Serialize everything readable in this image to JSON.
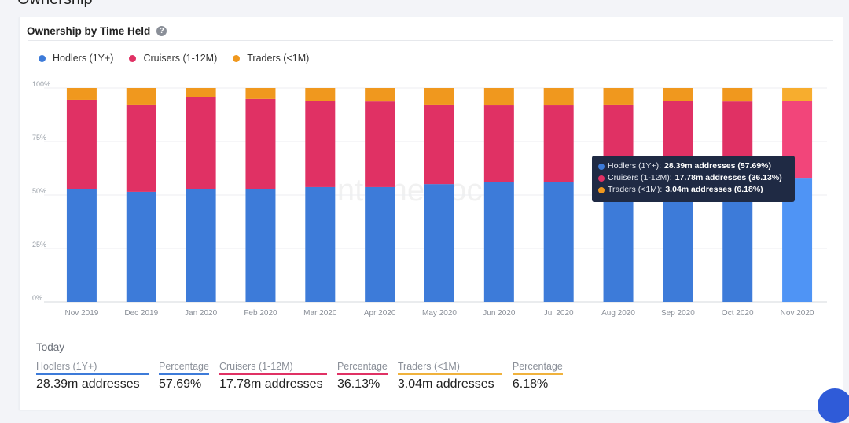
{
  "page": {
    "section_title": "Ownership"
  },
  "card": {
    "title": "Ownership by Time Held",
    "help_icon": "?"
  },
  "legend": [
    {
      "label": "Hodlers (1Y+)",
      "color": "#3d7bd9"
    },
    {
      "label": "Cruisers (1-12M)",
      "color": "#e03164"
    },
    {
      "label": "Traders (<1M)",
      "color": "#f0981e"
    }
  ],
  "watermark": "intotheblock",
  "tooltip": {
    "rows": [
      {
        "label": "Hodlers (1Y+):",
        "value": "28.39m addresses (57.69%)",
        "color": "#3d7bd9"
      },
      {
        "label": "Cruisers (1-12M):",
        "value": "17.78m addresses (36.13%)",
        "color": "#e03164"
      },
      {
        "label": "Traders (<1M):",
        "value": "3.04m addresses (6.18%)",
        "color": "#f0981e"
      }
    ]
  },
  "today": {
    "title": "Today",
    "stats": [
      {
        "label": "Hodlers (1Y+)",
        "value": "28.39m addresses",
        "color": "#3d7bd9"
      },
      {
        "label": "Percentage",
        "value": "57.69%",
        "color": "#3d7bd9"
      },
      {
        "label": "Cruisers (1-12M)",
        "value": "17.78m addresses",
        "color": "#e03164"
      },
      {
        "label": "Percentage",
        "value": "36.13%",
        "color": "#e03164"
      },
      {
        "label": "Traders (<1M)",
        "value": "3.04m addresses",
        "color": "#f0981e"
      },
      {
        "label": "Percentage",
        "value": "6.18%",
        "color": "#f0981e"
      }
    ]
  },
  "chart_data": {
    "type": "bar",
    "stacked": true,
    "title": "Ownership by Time Held",
    "xlabel": "",
    "ylabel": "",
    "ylim": [
      0,
      100
    ],
    "yticks": [
      "0%",
      "25%",
      "50%",
      "75%",
      "100%"
    ],
    "grid": true,
    "legend_position": "top-left",
    "highlighted_category": "Nov 2020",
    "categories": [
      "Nov 2019",
      "Dec 2019",
      "Jan 2020",
      "Feb 2020",
      "Mar 2020",
      "Apr 2020",
      "May 2020",
      "Jun 2020",
      "Jul 2020",
      "Aug 2020",
      "Sep 2020",
      "Oct 2020",
      "Nov 2020"
    ],
    "series": [
      {
        "name": "Hodlers (1Y+)",
        "color": "#3d7bd9",
        "highlight_color": "#4f94f5",
        "values": [
          52.6,
          51.5,
          52.9,
          52.9,
          53.7,
          53.7,
          55.1,
          55.9,
          55.9,
          56.5,
          57.0,
          57.3,
          57.69
        ]
      },
      {
        "name": "Cruisers (1-12M)",
        "color": "#e03164",
        "highlight_color": "#f2457a",
        "values": [
          41.9,
          40.8,
          42.7,
          42.0,
          40.4,
          40.0,
          37.2,
          36.0,
          36.0,
          35.8,
          37.1,
          36.4,
          36.13
        ]
      },
      {
        "name": "Traders (<1M)",
        "color": "#f0981e",
        "highlight_color": "#f7ad2e",
        "values": [
          5.5,
          7.7,
          4.4,
          5.1,
          5.9,
          6.3,
          7.7,
          8.1,
          8.1,
          7.7,
          5.9,
          6.3,
          6.18
        ]
      }
    ]
  }
}
